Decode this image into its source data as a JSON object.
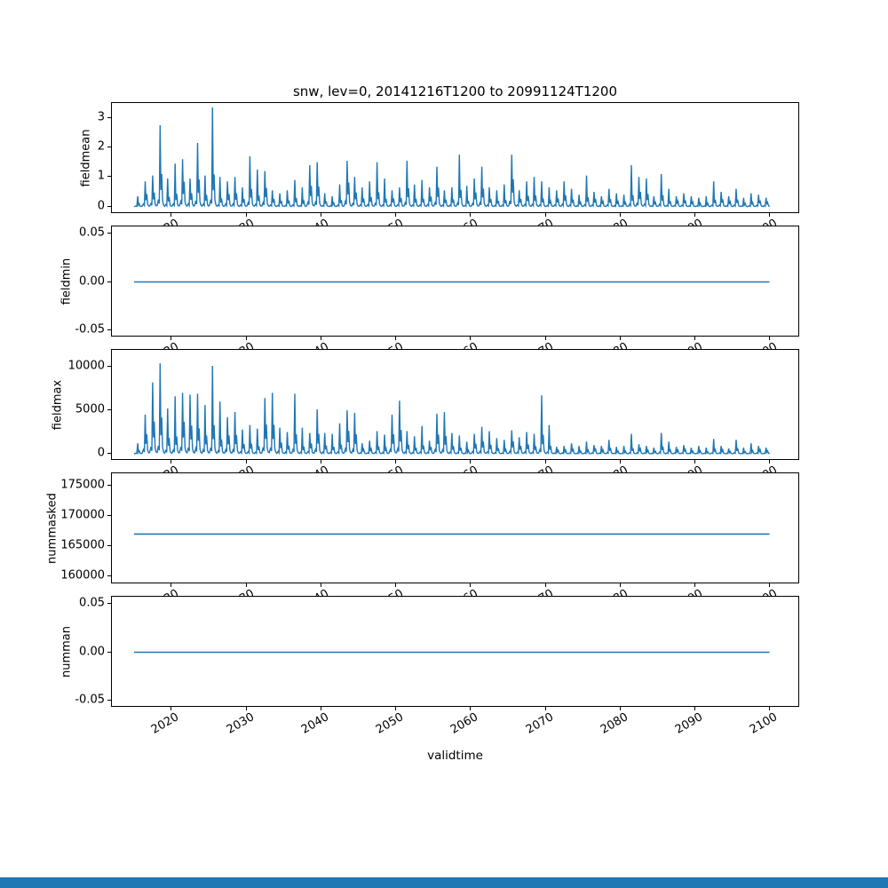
{
  "figure": {
    "title": "snw, lev=0, 20141216T1200 to 20991124T1200",
    "xlabel": "validtime",
    "line_color": "#1f77b4",
    "bottom_bar_color": "#1f77b4"
  },
  "x_axis": {
    "label": "validtime",
    "domain": [
      2012,
      2104
    ],
    "tick_values": [
      2020,
      2030,
      2040,
      2050,
      2060,
      2070,
      2080,
      2090,
      2100
    ],
    "tick_labels": [
      "2020",
      "2030",
      "2040",
      "2050",
      "2060",
      "2070",
      "2080",
      "2090",
      "2100"
    ],
    "data_start": 2014.96,
    "data_end": 2099.9
  },
  "chart_data": [
    {
      "type": "line",
      "name": "fieldmean",
      "ylabel": "fieldmean",
      "ylim": [
        -0.25,
        3.5
      ],
      "ytick_values": [
        0,
        1,
        2,
        3
      ],
      "ytick_labels": [
        "0",
        "1",
        "2",
        "3"
      ],
      "x_start_year": 2015,
      "x_end_year": 2099,
      "annual_peaks": [
        0.35,
        0.85,
        1.05,
        2.75,
        0.95,
        1.45,
        1.6,
        0.95,
        2.15,
        1.05,
        3.35,
        1.0,
        0.85,
        1.0,
        0.65,
        1.7,
        1.25,
        1.2,
        0.55,
        0.45,
        0.55,
        0.9,
        0.65,
        1.4,
        1.5,
        0.45,
        0.35,
        0.75,
        1.55,
        1.0,
        0.65,
        0.85,
        1.5,
        0.95,
        0.55,
        0.65,
        1.55,
        0.75,
        0.9,
        0.65,
        1.35,
        0.55,
        0.65,
        1.75,
        0.7,
        0.95,
        1.35,
        0.65,
        0.55,
        0.75,
        1.75,
        0.55,
        0.85,
        1.0,
        0.85,
        0.65,
        0.55,
        0.85,
        0.6,
        0.4,
        1.05,
        0.5,
        0.35,
        0.6,
        0.45,
        0.4,
        1.4,
        1.0,
        0.95,
        0.35,
        1.1,
        0.6,
        0.35,
        0.45,
        0.35,
        0.3,
        0.35,
        0.85,
        0.5,
        0.35,
        0.6,
        0.3,
        0.45,
        0.4,
        0.3
      ]
    },
    {
      "type": "line",
      "name": "fieldmin",
      "ylabel": "fieldmin",
      "ylim": [
        -0.057,
        0.057
      ],
      "ytick_values": [
        -0.05,
        0,
        0.05
      ],
      "ytick_labels": [
        "-0.05",
        "0.00",
        "0.05"
      ],
      "constant_value": 0.0
    },
    {
      "type": "line",
      "name": "fieldmax",
      "ylabel": "fieldmax",
      "ylim": [
        -816,
        11939
      ],
      "ytick_values": [
        0,
        5000,
        10000
      ],
      "ytick_labels": [
        "0",
        "5000",
        "10000"
      ],
      "x_start_year": 2015,
      "x_end_year": 2099,
      "annual_peaks": [
        1200,
        4500,
        8200,
        10400,
        5200,
        6600,
        7000,
        6800,
        6900,
        5600,
        10100,
        6000,
        4200,
        4800,
        2800,
        3300,
        2900,
        6400,
        7000,
        3000,
        2500,
        6900,
        3000,
        2400,
        5100,
        2400,
        2300,
        3500,
        5000,
        4700,
        1200,
        1500,
        2600,
        2200,
        4500,
        6100,
        2600,
        2000,
        3200,
        1500,
        4600,
        4800,
        2400,
        2100,
        1400,
        2300,
        3100,
        2600,
        1800,
        1600,
        2700,
        1900,
        2500,
        2300,
        6700,
        3300,
        800,
        900,
        1200,
        900,
        1400,
        1000,
        900,
        1600,
        800,
        900,
        2300,
        1100,
        900,
        700,
        2400,
        1400,
        800,
        1000,
        700,
        900,
        700,
        1700,
        900,
        600,
        1600,
        700,
        1200,
        900,
        700
      ]
    },
    {
      "type": "line",
      "name": "nummasked",
      "ylabel": "nummasked",
      "ylim": [
        158676,
        177059
      ],
      "ytick_values": [
        160000,
        165000,
        170000,
        175000
      ],
      "ytick_labels": [
        "160000",
        "165000",
        "170000",
        "175000"
      ],
      "constant_value": 167000
    },
    {
      "type": "line",
      "name": "numman",
      "ylabel": "numman",
      "ylim": [
        -0.057,
        0.057
      ],
      "ytick_values": [
        -0.05,
        0,
        0.05
      ],
      "ytick_labels": [
        "-0.05",
        "0.00",
        "0.05"
      ],
      "constant_value": 0.0
    }
  ]
}
